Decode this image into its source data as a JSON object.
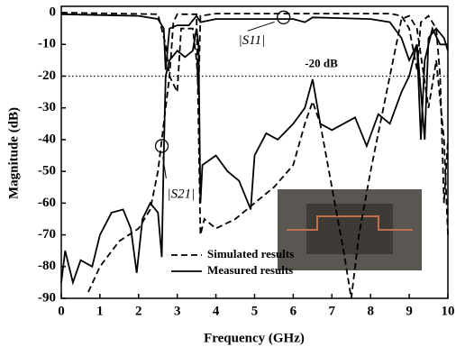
{
  "chart_data": {
    "type": "line",
    "x_label": "Frequency (GHz)",
    "y_label": "Magnitude (dB)",
    "xlim": [
      0,
      10
    ],
    "ylim": [
      -90,
      2
    ],
    "xticks": [
      0,
      1,
      2,
      3,
      4,
      5,
      6,
      7,
      8,
      9,
      10
    ],
    "yticks": [
      0,
      -10,
      -20,
      -30,
      -40,
      -50,
      -60,
      -70,
      -80,
      -90
    ],
    "legend": "lower center",
    "reference_line": {
      "value": -20,
      "label": "-20 dB"
    },
    "annotations": [
      {
        "text": "|S11|",
        "x": 5.75,
        "y": -1.5
      },
      {
        "text": "|S21|",
        "x": 2.6,
        "y": -42
      }
    ],
    "series": [
      {
        "name": "Simulated results",
        "color": "#000000",
        "dash": "dashed",
        "curves": [
          {
            "x": [
              0.7,
              1.0,
              1.5,
              2.0,
              2.3,
              2.5,
              2.7,
              2.8,
              2.9,
              3.0,
              3.5,
              3.6,
              3.7,
              4.0,
              4.5,
              5.0,
              5.5,
              6.0,
              6.3,
              6.5,
              6.7,
              7.0,
              7.3,
              7.5,
              7.7,
              8.0,
              8.5,
              8.8,
              9.0,
              9.2,
              9.5,
              9.7,
              9.9,
              10.0
            ],
            "values": [
              -88,
              -80,
              -72,
              -68,
              -62,
              -50,
              -30,
              -20,
              -3,
              -0.5,
              -0.5,
              -70,
              -65,
              -68,
              -65,
              -60,
              -55,
              -48,
              -35,
              -28,
              -35,
              -55,
              -75,
              -90,
              -70,
              -50,
              -20,
              -2,
              -1,
              -5,
              -30,
              -15,
              -40,
              -70
            ]
          },
          {
            "x": [
              0,
              2.5,
              2.7,
              2.8,
              3.0,
              3.1,
              3.4,
              3.5,
              3.55,
              3.6,
              4.0,
              6.0,
              8.5,
              8.8,
              9.0,
              9.2,
              9.3,
              9.5,
              9.7,
              9.8,
              9.9,
              10.0
            ],
            "values": [
              0,
              -0.5,
              -10,
              -20,
              -25,
              -5,
              -5,
              -15,
              -25,
              -1,
              -0.3,
              -0.3,
              -0.3,
              -1,
              -5,
              -18,
              -3,
              -1,
              -5,
              -20,
              -60,
              -40
            ]
          }
        ]
      },
      {
        "name": "Measured results",
        "color": "#000000",
        "dash": "solid",
        "curves": [
          {
            "x": [
              0,
              0.1,
              0.3,
              0.5,
              0.8,
              1.0,
              1.3,
              1.6,
              1.8,
              1.95,
              2.1,
              2.3,
              2.5,
              2.6,
              2.65,
              2.7,
              2.8,
              3.0,
              3.2,
              3.4,
              3.5,
              3.55,
              3.6,
              3.65,
              4.0,
              4.3,
              4.6,
              4.9,
              5.0,
              5.3,
              5.6,
              6.0,
              6.3,
              6.5,
              6.7,
              7.0,
              7.3,
              7.6,
              7.9,
              8.2,
              8.5,
              8.8,
              9.0,
              9.2,
              9.4,
              9.5,
              9.7,
              9.9,
              10.0
            ],
            "values": [
              -85,
              -75,
              -85,
              -78,
              -80,
              -70,
              -63,
              -62,
              -68,
              -82,
              -65,
              -60,
              -63,
              -77,
              -45,
              -20,
              -15,
              -12,
              -14,
              -12,
              -5,
              -10,
              -60,
              -48,
              -45,
              -50,
              -53,
              -62,
              -45,
              -38,
              -40,
              -35,
              -30,
              -21,
              -35,
              -37,
              -35,
              -33,
              -42,
              -32,
              -35,
              -25,
              -20,
              -10,
              -40,
              -8,
              -5,
              -8,
              -12
            ]
          },
          {
            "x": [
              0,
              2.0,
              2.5,
              2.65,
              2.7,
              2.8,
              3.0,
              3.3,
              3.5,
              3.6,
              4.0,
              5.0,
              6.0,
              6.3,
              6.5,
              8.0,
              8.5,
              8.8,
              9.0,
              9.2,
              9.3,
              9.4,
              9.6,
              9.8,
              10.0
            ],
            "values": [
              -0.5,
              -1,
              -2,
              -5,
              -18,
              -5,
              -4,
              -4,
              -1,
              -3,
              -2,
              -2,
              -2,
              -3,
              -1.5,
              -2,
              -3,
              -8,
              -15,
              -10,
              -40,
              -15,
              -5,
              -10,
              -10
            ]
          }
        ]
      }
    ]
  }
}
